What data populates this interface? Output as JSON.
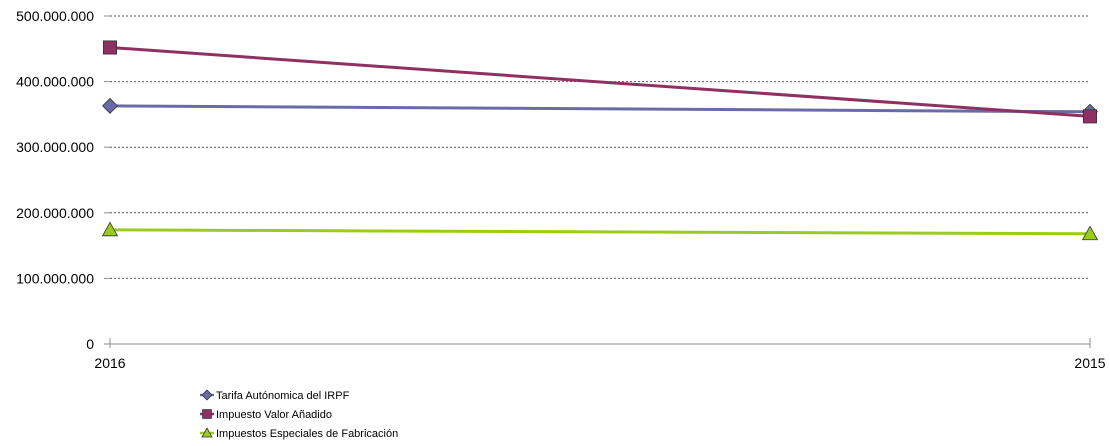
{
  "chart_data": {
    "type": "line",
    "title": "",
    "xlabel": "",
    "ylabel": "",
    "categories": [
      "2016",
      "2015"
    ],
    "ylim": [
      0,
      500000000
    ],
    "y_ticks": [
      {
        "value": 0,
        "label": "0"
      },
      {
        "value": 100000000,
        "label": "100.000.000"
      },
      {
        "value": 200000000,
        "label": "200.000.000"
      },
      {
        "value": 300000000,
        "label": "300.000.000"
      },
      {
        "value": 400000000,
        "label": "400.000.000"
      },
      {
        "value": 500000000,
        "label": "500.000.000"
      }
    ],
    "grid": "horizontal-dotted",
    "legend_position": "bottom-left",
    "series": [
      {
        "name": "Tarifa Autónomica del IRPF",
        "values": [
          363000000,
          354000000
        ],
        "color": "#6a6aa8",
        "marker": "diamond"
      },
      {
        "name": "Impuesto Valor Añadido",
        "values": [
          452000000,
          347000000
        ],
        "color": "#8e3162",
        "marker": "square"
      },
      {
        "name": "Impuestos Especiales de Fabricación",
        "values": [
          174000000,
          168000000
        ],
        "color": "#9bcc1c",
        "marker": "triangle"
      }
    ]
  }
}
